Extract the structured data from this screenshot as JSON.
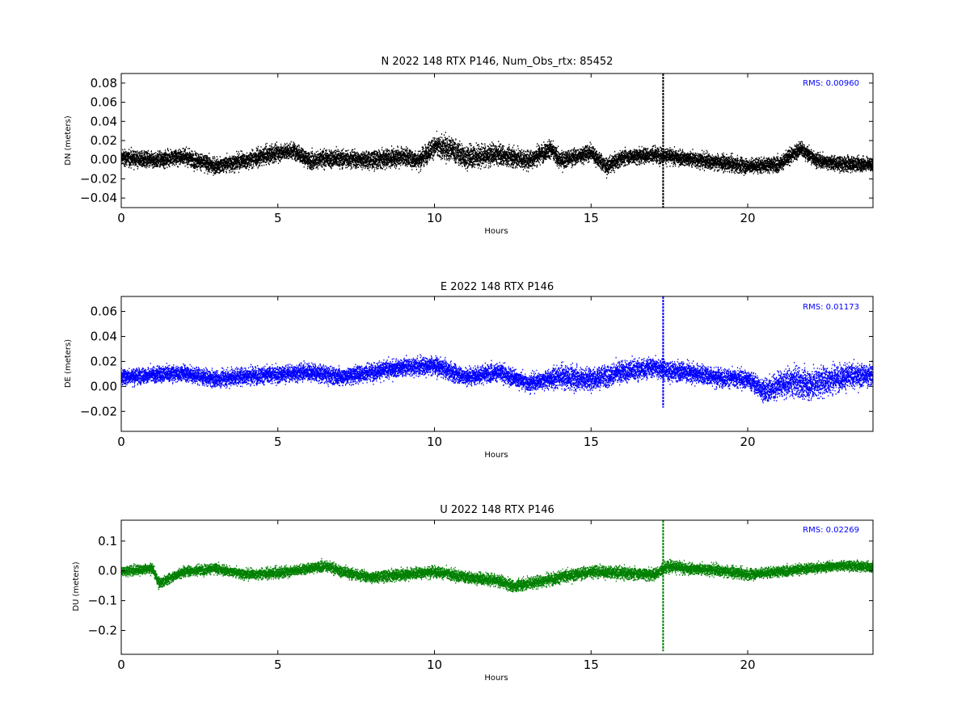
{
  "chart_data": [
    {
      "type": "scatter",
      "title": "N 2022 148 RTX  P146, Num_Obs_rtx: 85452",
      "xlabel": "Hours",
      "ylabel": "DN (meters)",
      "xlim": [
        0,
        24
      ],
      "ylim": [
        -0.05,
        0.09
      ],
      "xticks": [
        0,
        5,
        10,
        15,
        20
      ],
      "yticks": [
        -0.04,
        -0.02,
        0.0,
        0.02,
        0.04,
        0.06,
        0.08
      ],
      "ytick_labels": [
        "−0.04",
        "−0.02",
        "0.00",
        "0.02",
        "0.04",
        "0.06",
        "0.08"
      ],
      "xtick_labels": [
        "0",
        "5",
        "10",
        "15",
        "20"
      ],
      "annotation": "RMS:  0.00960",
      "annotation_color": "#0000ff",
      "color": "#000000",
      "grid": false,
      "trend": [
        [
          0,
          0.003
        ],
        [
          1,
          0.0
        ],
        [
          2,
          0.004
        ],
        [
          3,
          -0.006
        ],
        [
          4,
          0.0
        ],
        [
          5,
          0.008
        ],
        [
          5.5,
          0.01
        ],
        [
          6,
          0.0
        ],
        [
          7,
          0.002
        ],
        [
          8,
          0.0
        ],
        [
          9,
          0.004
        ],
        [
          9.5,
          0.0
        ],
        [
          10,
          0.014
        ],
        [
          10.5,
          0.012
        ],
        [
          11,
          0.003
        ],
        [
          12,
          0.006
        ],
        [
          13,
          0.0
        ],
        [
          13.7,
          0.012
        ],
        [
          14,
          0.0
        ],
        [
          15,
          0.008
        ],
        [
          15.5,
          -0.007
        ],
        [
          16,
          0.003
        ],
        [
          17,
          0.006
        ],
        [
          18,
          0.002
        ],
        [
          19,
          -0.002
        ],
        [
          20,
          -0.006
        ],
        [
          21,
          -0.004
        ],
        [
          21.7,
          0.012
        ],
        [
          22.2,
          0.0
        ],
        [
          23,
          -0.004
        ],
        [
          24,
          -0.004
        ]
      ],
      "noise": [
        [
          0,
          0.01
        ],
        [
          9.5,
          0.012
        ],
        [
          10.5,
          0.016
        ],
        [
          13,
          0.012
        ],
        [
          15,
          0.01
        ],
        [
          21.5,
          0.01
        ],
        [
          24,
          0.009
        ]
      ],
      "spike": {
        "x": 17.3,
        "ymin": -0.05,
        "ymax": 0.09
      }
    },
    {
      "type": "scatter",
      "title": "E 2022 148 RTX  P146",
      "xlabel": "Hours",
      "ylabel": "DE (meters)",
      "xlim": [
        0,
        24
      ],
      "ylim": [
        -0.036,
        0.072
      ],
      "xticks": [
        0,
        5,
        10,
        15,
        20
      ],
      "yticks": [
        -0.02,
        0.0,
        0.02,
        0.04,
        0.06
      ],
      "ytick_labels": [
        "−0.02",
        "0.00",
        "0.02",
        "0.04",
        "0.06"
      ],
      "xtick_labels": [
        "0",
        "5",
        "10",
        "15",
        "20"
      ],
      "annotation": "RMS:  0.01173",
      "annotation_color": "#0000ff",
      "color": "#0000ff",
      "grid": false,
      "trend": [
        [
          0,
          0.008
        ],
        [
          2,
          0.011
        ],
        [
          3,
          0.006
        ],
        [
          4,
          0.009
        ],
        [
          5,
          0.01
        ],
        [
          6,
          0.012
        ],
        [
          7,
          0.008
        ],
        [
          8,
          0.012
        ],
        [
          9,
          0.016
        ],
        [
          10,
          0.017
        ],
        [
          11,
          0.008
        ],
        [
          12,
          0.012
        ],
        [
          13,
          0.003
        ],
        [
          14,
          0.008
        ],
        [
          15,
          0.006
        ],
        [
          16,
          0.012
        ],
        [
          17,
          0.016
        ],
        [
          17.5,
          0.012
        ],
        [
          18,
          0.012
        ],
        [
          19,
          0.008
        ],
        [
          20,
          0.006
        ],
        [
          20.6,
          -0.004
        ],
        [
          21,
          0.002
        ],
        [
          21.5,
          0.004
        ],
        [
          22,
          0.002
        ],
        [
          23,
          0.008
        ],
        [
          24,
          0.01
        ]
      ],
      "noise": [
        [
          0,
          0.008
        ],
        [
          13.5,
          0.009
        ],
        [
          14.5,
          0.012
        ],
        [
          17,
          0.01
        ],
        [
          20,
          0.009
        ],
        [
          21.7,
          0.016
        ],
        [
          24,
          0.01
        ]
      ],
      "spike": {
        "x": 17.3,
        "ymin": -0.017,
        "ymax": 0.072
      }
    },
    {
      "type": "scatter",
      "title": "U 2022 148 RTX  P146",
      "xlabel": "Hours",
      "ylabel": "DU (meters)",
      "xlim": [
        0,
        24
      ],
      "ylim": [
        -0.28,
        0.17
      ],
      "xticks": [
        0,
        5,
        10,
        15,
        20
      ],
      "yticks": [
        -0.2,
        -0.1,
        0.0,
        0.1
      ],
      "ytick_labels": [
        "−0.2",
        "−0.1",
        "0.0",
        "0.1"
      ],
      "xtick_labels": [
        "0",
        "5",
        "10",
        "15",
        "20"
      ],
      "annotation": "RMS:  0.02269",
      "annotation_color": "#0000ff",
      "color": "#008000",
      "grid": false,
      "trend": [
        [
          0,
          0.0
        ],
        [
          1,
          0.01
        ],
        [
          1.2,
          -0.04
        ],
        [
          2,
          0.0
        ],
        [
          3,
          0.01
        ],
        [
          4,
          -0.01
        ],
        [
          5,
          -0.005
        ],
        [
          6,
          0.01
        ],
        [
          6.5,
          0.02
        ],
        [
          7,
          0.0
        ],
        [
          8,
          -0.02
        ],
        [
          9,
          -0.01
        ],
        [
          10,
          0.0
        ],
        [
          11,
          -0.02
        ],
        [
          12,
          -0.03
        ],
        [
          12.5,
          -0.05
        ],
        [
          13,
          -0.04
        ],
        [
          14,
          -0.02
        ],
        [
          15,
          0.0
        ],
        [
          16,
          -0.005
        ],
        [
          17,
          -0.01
        ],
        [
          17.5,
          0.02
        ],
        [
          18,
          0.01
        ],
        [
          19,
          0.005
        ],
        [
          20,
          -0.01
        ],
        [
          21,
          0.0
        ],
        [
          22,
          0.01
        ],
        [
          23,
          0.02
        ],
        [
          24,
          0.015
        ]
      ],
      "noise": [
        [
          0,
          0.02
        ],
        [
          12,
          0.025
        ],
        [
          17,
          0.025
        ],
        [
          24,
          0.02
        ]
      ],
      "spike": {
        "x": 17.3,
        "ymin": -0.27,
        "ymax": 0.17
      }
    }
  ]
}
